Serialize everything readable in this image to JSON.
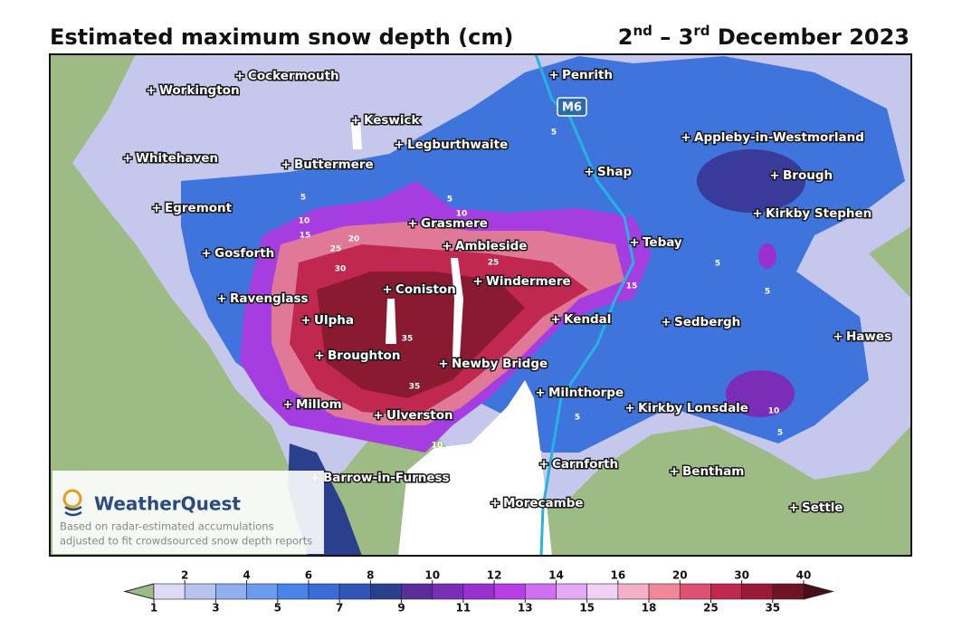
{
  "header": {
    "title": "Estimated maximum snow depth (cm)",
    "date": {
      "day1": "2",
      "sup1": "nd",
      "sep": " – ",
      "day2": "3",
      "sup2": "rd",
      "rest": " December 2023"
    }
  },
  "map": {
    "road_label": "M6",
    "places": [
      "Cockermouth",
      "Workington",
      "Keswick",
      "Legburthwaite",
      "Whitehaven",
      "Buttermere",
      "Penrith",
      "Shap",
      "Appleby-in-Westmorland",
      "Brough",
      "Kirkby Stephen",
      "Egremont",
      "Grasmere",
      "Ambleside",
      "Tebay",
      "Gosforth",
      "Windermere",
      "Coniston",
      "Ravenglass",
      "Kendal",
      "Sedbergh",
      "Ulpha",
      "Hawes",
      "Broughton",
      "Newby Bridge",
      "Milnthorpe",
      "Millom",
      "Kirkby Lonsdale",
      "Ulverston",
      "Carnforth",
      "Bentham",
      "Barrow-in-Furness",
      "Morecambe",
      "Settle"
    ],
    "contour_labels": [
      5,
      10,
      15,
      20,
      25,
      30,
      35,
      35,
      25,
      10,
      5,
      5,
      15,
      5,
      5,
      10,
      5,
      5,
      10
    ]
  },
  "logo": {
    "name": "WeatherQuest"
  },
  "footnote": [
    "Based on radar-estimated accumulations",
    "adjusted to fit crowdsourced snow depth reports"
  ],
  "colorbar": {
    "bounds": [
      1,
      2,
      3,
      4,
      5,
      6,
      7,
      8,
      9,
      10,
      11,
      12,
      13,
      14,
      15,
      16,
      18,
      20,
      25,
      30,
      35,
      40
    ],
    "colors": [
      "#dcdaf5",
      "#b8c4f0",
      "#8fb0f0",
      "#6a9cf0",
      "#4a84ea",
      "#3a6cd8",
      "#3056b8",
      "#2a3f8e",
      "#5a2e9a",
      "#7a2eb8",
      "#9a30d0",
      "#b83ee8",
      "#d070f0",
      "#e4a8f4",
      "#f0d0f5",
      "#f4b0c8",
      "#f08898",
      "#e05070",
      "#c02850",
      "#9a1a38",
      "#6e1422"
    ],
    "under_color": "#9dbb85",
    "over_color": "#4a0e18"
  }
}
